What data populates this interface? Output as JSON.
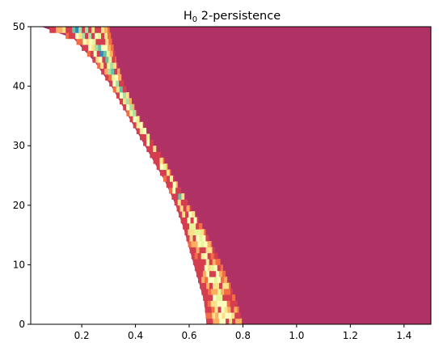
{
  "chart_data": {
    "type": "heatmap",
    "title_main": "H",
    "title_sub": "0",
    "title_rest": " 2-persistence",
    "xlim": [
      0.01,
      1.5
    ],
    "ylim": [
      0,
      50
    ],
    "xticks": [
      0.2,
      0.4,
      0.6,
      0.8,
      1.0,
      1.2,
      1.4
    ],
    "xtick_labels": [
      "0.2",
      "0.4",
      "0.6",
      "0.8",
      "1.0",
      "1.2",
      "1.4"
    ],
    "yticks": [
      0,
      10,
      20,
      30,
      40,
      50
    ],
    "ytick_labels": [
      "0",
      "10",
      "20",
      "30",
      "40",
      "50"
    ],
    "background_color": "#b03265",
    "colormap": "Spectral",
    "cell_width": 0.012,
    "cell_height": 1,
    "boundary_left": [
      [
        0,
        0.665
      ],
      [
        4,
        0.655
      ],
      [
        8,
        0.63
      ],
      [
        12,
        0.605
      ],
      [
        16,
        0.58
      ],
      [
        20,
        0.55
      ],
      [
        24,
        0.51
      ],
      [
        28,
        0.46
      ],
      [
        32,
        0.41
      ],
      [
        36,
        0.36
      ],
      [
        40,
        0.31
      ],
      [
        44,
        0.25
      ],
      [
        48,
        0.17
      ],
      [
        50,
        0.05
      ]
    ],
    "boundary_right": [
      [
        0,
        0.8
      ],
      [
        4,
        0.775
      ],
      [
        8,
        0.74
      ],
      [
        12,
        0.7
      ],
      [
        16,
        0.655
      ],
      [
        20,
        0.6
      ],
      [
        24,
        0.55
      ],
      [
        28,
        0.5
      ],
      [
        32,
        0.445
      ],
      [
        36,
        0.4
      ],
      [
        40,
        0.36
      ],
      [
        44,
        0.33
      ],
      [
        48,
        0.31
      ],
      [
        50,
        0.3
      ]
    ],
    "band_colors": [
      "#d53e4f",
      "#f46d43",
      "#fdae61",
      "#fee08b",
      "#ffffbf",
      "#e6f598",
      "#abdda4",
      "#66c2a5",
      "#3288bd"
    ]
  }
}
